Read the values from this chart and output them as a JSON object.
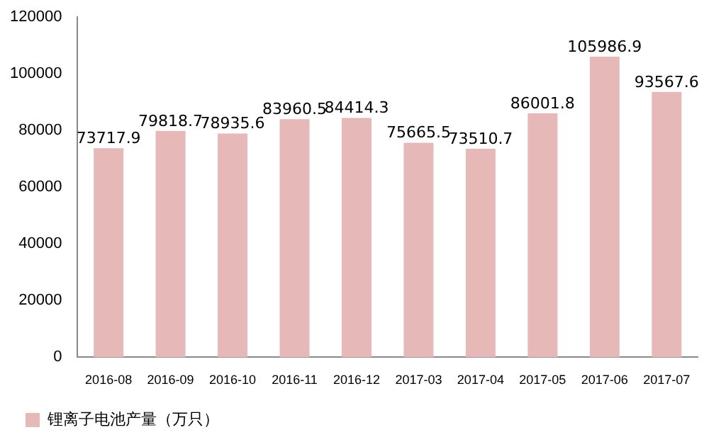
{
  "chart_data": {
    "type": "bar",
    "categories": [
      "2016-08",
      "2016-09",
      "2016-10",
      "2016-11",
      "2016-12",
      "2017-03",
      "2017-04",
      "2017-05",
      "2017-06",
      "2017-07"
    ],
    "series": [
      {
        "name": "锂离子电池产量（万只）",
        "color": "#e6b9b8",
        "values": [
          73717.9,
          79818.7,
          78935.6,
          83960.5,
          84414.3,
          75665.5,
          73510.7,
          86001.8,
          105986.9,
          93567.6
        ]
      }
    ],
    "ylim": [
      0,
      120000
    ],
    "yticks": [
      0,
      20000,
      40000,
      60000,
      80000,
      100000,
      120000
    ],
    "grid": false,
    "legend": "bottom",
    "data_labels": true
  }
}
